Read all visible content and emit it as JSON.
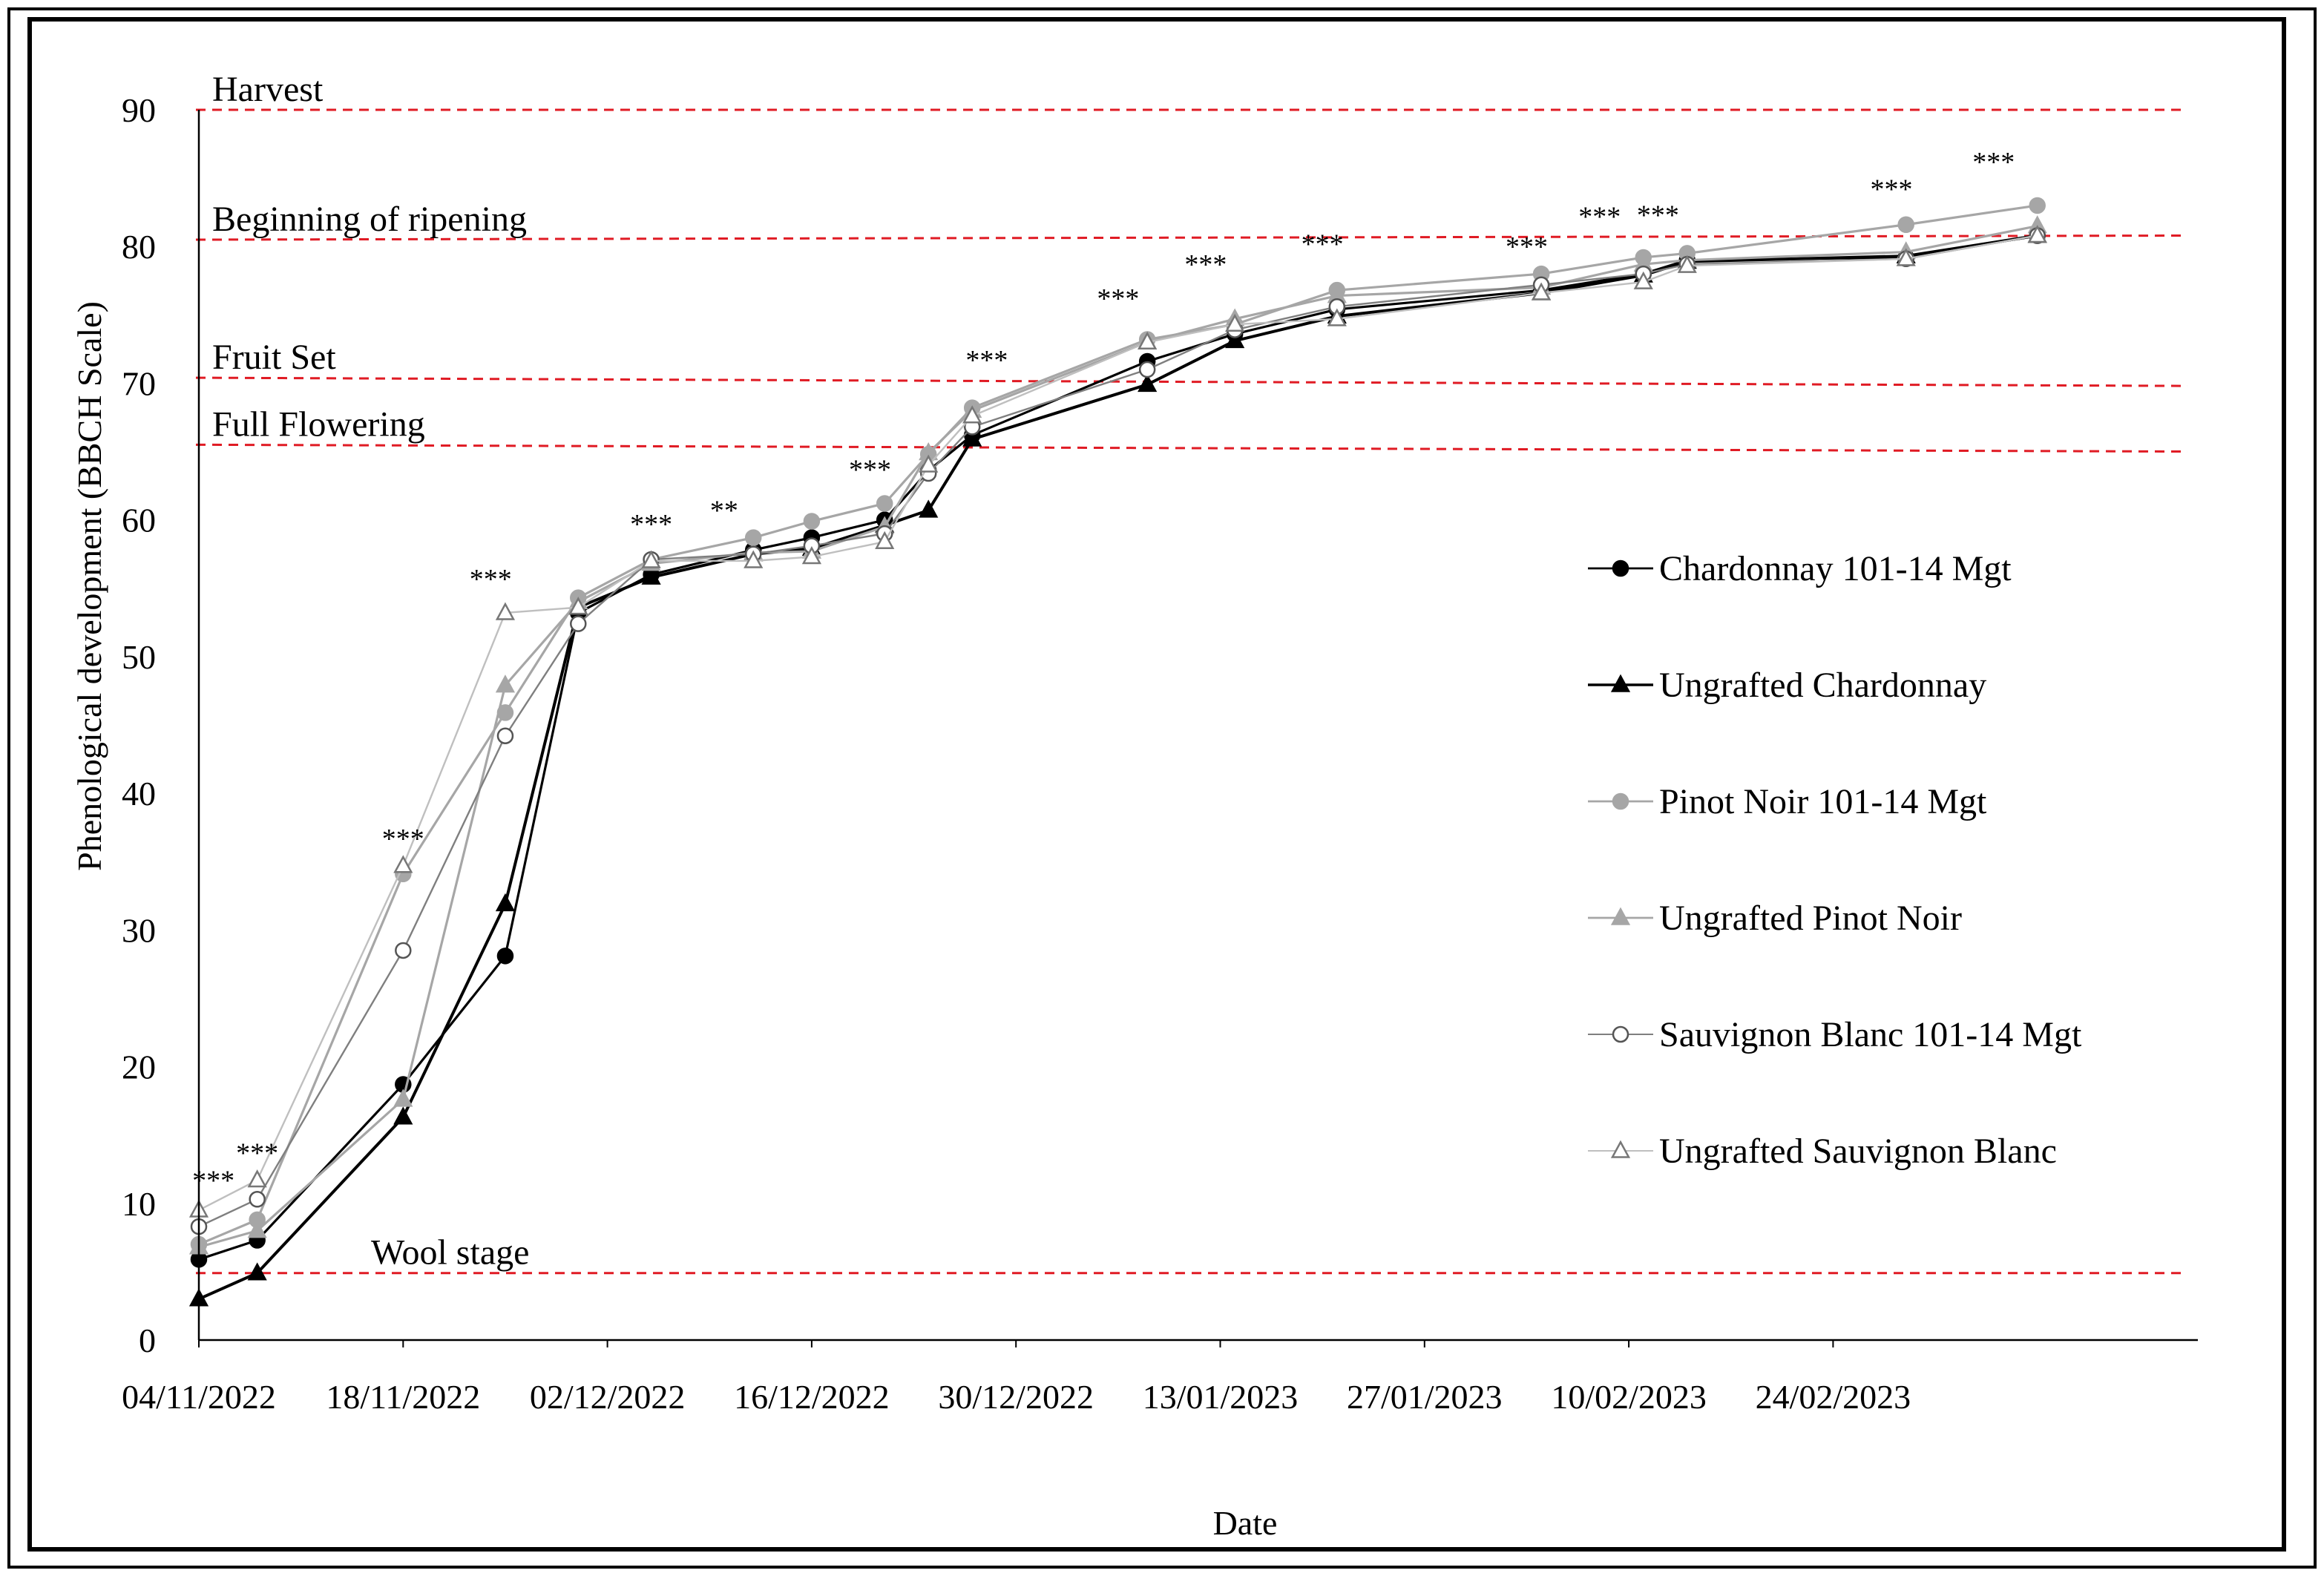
{
  "chart_data": {
    "type": "line",
    "xlabel": "Date",
    "ylabel": "Phenological  development (BBCH Scale)",
    "ylim": [
      0,
      90
    ],
    "yticks": [
      0,
      10,
      20,
      30,
      40,
      50,
      60,
      70,
      80,
      90
    ],
    "xlim": [
      "2022-11-04",
      "2023-03-21"
    ],
    "xticks": [
      {
        "date": "2022-11-04",
        "label": "04/11/2022"
      },
      {
        "date": "2022-11-18",
        "label": "18/11/2022"
      },
      {
        "date": "2022-12-02",
        "label": "02/12/2022"
      },
      {
        "date": "2022-12-16",
        "label": "16/12/2022"
      },
      {
        "date": "2022-12-30",
        "label": "30/12/2022"
      },
      {
        "date": "2023-01-13",
        "label": "13/01/2023"
      },
      {
        "date": "2023-01-27",
        "label": "27/01/2023"
      },
      {
        "date": "2023-02-10",
        "label": "10/02/2023"
      },
      {
        "date": "2023-02-24",
        "label": "24/02/2023"
      }
    ],
    "grid": false,
    "legend_position": "right",
    "reference_lines": [
      {
        "label": "Harvest",
        "y_start": 90,
        "y_end": 90
      },
      {
        "label": "Beginning of ripening",
        "y_start": 80.5,
        "y_end": 80.8
      },
      {
        "label": "Fruit Set",
        "y_start": 70.4,
        "y_end": 69.8
      },
      {
        "label": "Full Flowering",
        "y_start": 65.5,
        "y_end": 65
      },
      {
        "label": "Wool stage",
        "y_start": 4.9,
        "y_end": 4.9
      }
    ],
    "reference_line_color": "#e01b24",
    "series": [
      {
        "name": "Chardonnay 101-14 Mgt",
        "marker": "circle-filled",
        "color": "#000000",
        "line_width": 2,
        "x": [
          "2022-11-04",
          "2022-11-08",
          "2022-11-18",
          "2022-11-25",
          "2022-11-30",
          "2022-12-05",
          "2022-12-12",
          "2022-12-16",
          "2022-12-21",
          "2022-12-24",
          "2022-12-27",
          "2023-01-08",
          "2023-01-14",
          "2023-01-21",
          "2023-02-04",
          "2023-02-11",
          "2023-02-14",
          "2023-03-01",
          "2023-03-10"
        ],
        "values": [
          5.9,
          7.3,
          18.7,
          28.1,
          53.2,
          56,
          57.8,
          58.7,
          60,
          63.6,
          66.2,
          71.6,
          73.6,
          75.4,
          76.8,
          78,
          79,
          79.2,
          80.8
        ]
      },
      {
        "name": "Ungrafted Chardonnay",
        "marker": "triangle-filled",
        "color": "#000000",
        "line_width": 2.5,
        "x": [
          "2022-11-04",
          "2022-11-08",
          "2022-11-18",
          "2022-11-25",
          "2022-11-30",
          "2022-12-05",
          "2022-12-12",
          "2022-12-16",
          "2022-12-21",
          "2022-12-24",
          "2022-12-27",
          "2023-01-08",
          "2023-01-14",
          "2023-01-21",
          "2023-02-04",
          "2023-02-11",
          "2023-02-14",
          "2023-03-01",
          "2023-03-10"
        ],
        "values": [
          3,
          4.9,
          16.3,
          31.9,
          53.6,
          55.8,
          57.5,
          57.9,
          59.6,
          60.7,
          65.9,
          69.9,
          73.1,
          74.9,
          76.6,
          77.9,
          78.9,
          79.3,
          80.8
        ]
      },
      {
        "name": "Pinot Noir 101-14 Mgt",
        "marker": "circle-filled",
        "color": "#a6a6a6",
        "line_width": 2,
        "x": [
          "2022-11-04",
          "2022-11-08",
          "2022-11-18",
          "2022-11-25",
          "2022-11-30",
          "2022-12-05",
          "2022-12-12",
          "2022-12-16",
          "2022-12-21",
          "2022-12-24",
          "2022-12-27",
          "2023-01-08",
          "2023-01-14",
          "2023-01-21",
          "2023-02-04",
          "2023-02-11",
          "2023-02-14",
          "2023-03-01",
          "2023-03-10"
        ],
        "values": [
          7,
          8.8,
          34.1,
          45.9,
          54.3,
          57.1,
          58.7,
          59.9,
          61.2,
          64.8,
          68.2,
          73.2,
          74.3,
          76.8,
          78,
          79.2,
          79.5,
          81.6,
          83
        ]
      },
      {
        "name": "Ungrafted Pinot Noir",
        "marker": "triangle-filled",
        "color": "#a6a6a6",
        "line_width": 2,
        "x": [
          "2022-11-04",
          "2022-11-08",
          "2022-11-18",
          "2022-11-25",
          "2022-11-30",
          "2022-12-05",
          "2022-12-12",
          "2022-12-16",
          "2022-12-21",
          "2022-12-24",
          "2022-12-27",
          "2023-01-08",
          "2023-01-14",
          "2023-01-21",
          "2023-02-04",
          "2023-02-11",
          "2023-02-14",
          "2023-03-01",
          "2023-03-10"
        ],
        "values": [
          6.8,
          8,
          17.6,
          47.9,
          54,
          56.8,
          57.6,
          57.7,
          59.5,
          64.9,
          68,
          73,
          74.7,
          76.4,
          77,
          78.7,
          79,
          79.6,
          81.5
        ]
      },
      {
        "name": "Sauvignon Blanc 101-14 Mgt",
        "marker": "circle-open",
        "color": "#7f7f7f",
        "line_width": 1.5,
        "x": [
          "2022-11-04",
          "2022-11-08",
          "2022-11-18",
          "2022-11-25",
          "2022-11-30",
          "2022-12-05",
          "2022-12-12",
          "2022-12-16",
          "2022-12-21",
          "2022-12-24",
          "2022-12-27",
          "2023-01-08",
          "2023-01-14",
          "2023-01-21",
          "2023-02-04",
          "2023-02-11",
          "2023-02-14",
          "2023-03-01",
          "2023-03-10"
        ],
        "values": [
          8.3,
          10.3,
          28.5,
          44.2,
          52.4,
          57.1,
          57.5,
          58.1,
          59,
          63.4,
          66.8,
          71,
          73.9,
          75.6,
          77.2,
          78,
          78.7,
          79.1,
          80.8
        ]
      },
      {
        "name": "Ungrafted Sauvignon Blanc",
        "marker": "triangle-open",
        "color": "#bfbfbf",
        "line_width": 1.5,
        "x": [
          "2022-11-04",
          "2022-11-08",
          "2022-11-18",
          "2022-11-25",
          "2022-11-30",
          "2022-12-05",
          "2022-12-12",
          "2022-12-16",
          "2022-12-21",
          "2022-12-24",
          "2022-12-27",
          "2023-01-08",
          "2023-01-14",
          "2023-01-21",
          "2023-02-04",
          "2023-02-11",
          "2023-02-14",
          "2023-03-01",
          "2023-03-10"
        ],
        "values": [
          9.5,
          11.7,
          34.7,
          53.2,
          53.6,
          57,
          57,
          57.3,
          58.4,
          64,
          67.6,
          73,
          74.3,
          74.7,
          76.6,
          77.4,
          78.6,
          79.1,
          80.8
        ]
      }
    ],
    "annotations": [
      {
        "text": "***",
        "x": "2022-11-05",
        "y": 11
      },
      {
        "text": "***",
        "x": "2022-11-08",
        "y": 13
      },
      {
        "text": "***",
        "x": "2022-11-18",
        "y": 36
      },
      {
        "text": "***",
        "x": "2022-11-24",
        "y": 55
      },
      {
        "text": "***",
        "x": "2022-12-05",
        "y": 59
      },
      {
        "text": "**",
        "x": "2022-12-10",
        "y": 60
      },
      {
        "text": "***",
        "x": "2022-12-20",
        "y": 63
      },
      {
        "text": "***",
        "x": "2022-12-28",
        "y": 71
      },
      {
        "text": "***",
        "x": "2023-01-06",
        "y": 75.5
      },
      {
        "text": "***",
        "x": "2023-01-12",
        "y": 78
      },
      {
        "text": "***",
        "x": "2023-01-20",
        "y": 79.5
      },
      {
        "text": "***",
        "x": "2023-02-03",
        "y": 79.3
      },
      {
        "text": "***",
        "x": "2023-02-08",
        "y": 81.5
      },
      {
        "text": "***",
        "x": "2023-02-12",
        "y": 81.6
      },
      {
        "text": "***",
        "x": "2023-02-28",
        "y": 83.5
      },
      {
        "text": "***",
        "x": "2023-03-07",
        "y": 85.5
      }
    ]
  }
}
